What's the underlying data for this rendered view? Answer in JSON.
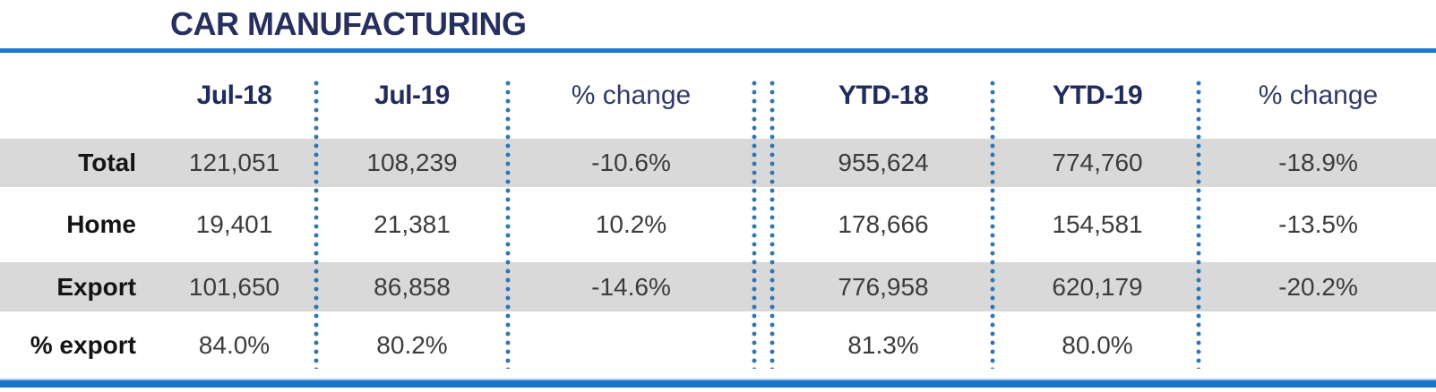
{
  "title": "CAR MANUFACTURING",
  "colors": {
    "title_navy": "#262f5e",
    "header_navy": "#222c5c",
    "rule_blue": "#1d79d0",
    "bottom_bar_blue": "#1b72c6",
    "dot_blue": "#2e75b6",
    "shaded_row_gray": "#d9d9d9",
    "value_text": "#3c3c3c"
  },
  "table": {
    "columns": [
      "Jul-18",
      "Jul-19",
      "% change",
      "YTD-18",
      "YTD-19",
      "% change"
    ],
    "rows": [
      {
        "label": "Total",
        "values": [
          "121,051",
          "108,239",
          "-10.6%",
          "955,624",
          "774,760",
          "-18.9%"
        ]
      },
      {
        "label": "Home",
        "values": [
          "19,401",
          "21,381",
          "10.2%",
          "178,666",
          "154,581",
          "-13.5%"
        ]
      },
      {
        "label": "Export",
        "values": [
          "101,650",
          "86,858",
          "-14.6%",
          "776,958",
          "620,179",
          "-20.2%"
        ]
      },
      {
        "label": "% export",
        "values": [
          "84.0%",
          "80.2%",
          "",
          "81.3%",
          "80.0%",
          ""
        ]
      }
    ]
  },
  "chart_data": {
    "type": "table",
    "title": "CAR MANUFACTURING",
    "columns": [
      "",
      "Jul-18",
      "Jul-19",
      "% change",
      "YTD-18",
      "YTD-19",
      "% change"
    ],
    "rows": [
      [
        "Total",
        "121,051",
        "108,239",
        "-10.6%",
        "955,624",
        "774,760",
        "-18.9%"
      ],
      [
        "Home",
        "19,401",
        "21,381",
        "10.2%",
        "178,666",
        "154,581",
        "-13.5%"
      ],
      [
        "Export",
        "101,650",
        "86,858",
        "-14.6%",
        "776,958",
        "620,179",
        "-20.2%"
      ],
      [
        "% export",
        "84.0%",
        "80.2%",
        "",
        "81.3%",
        "80.0%",
        ""
      ]
    ],
    "layout_hints": {
      "shaded_rows": [
        "Total",
        "Export"
      ],
      "group_separator_after_column": "% change",
      "dotted_column_dividers": true
    }
  }
}
